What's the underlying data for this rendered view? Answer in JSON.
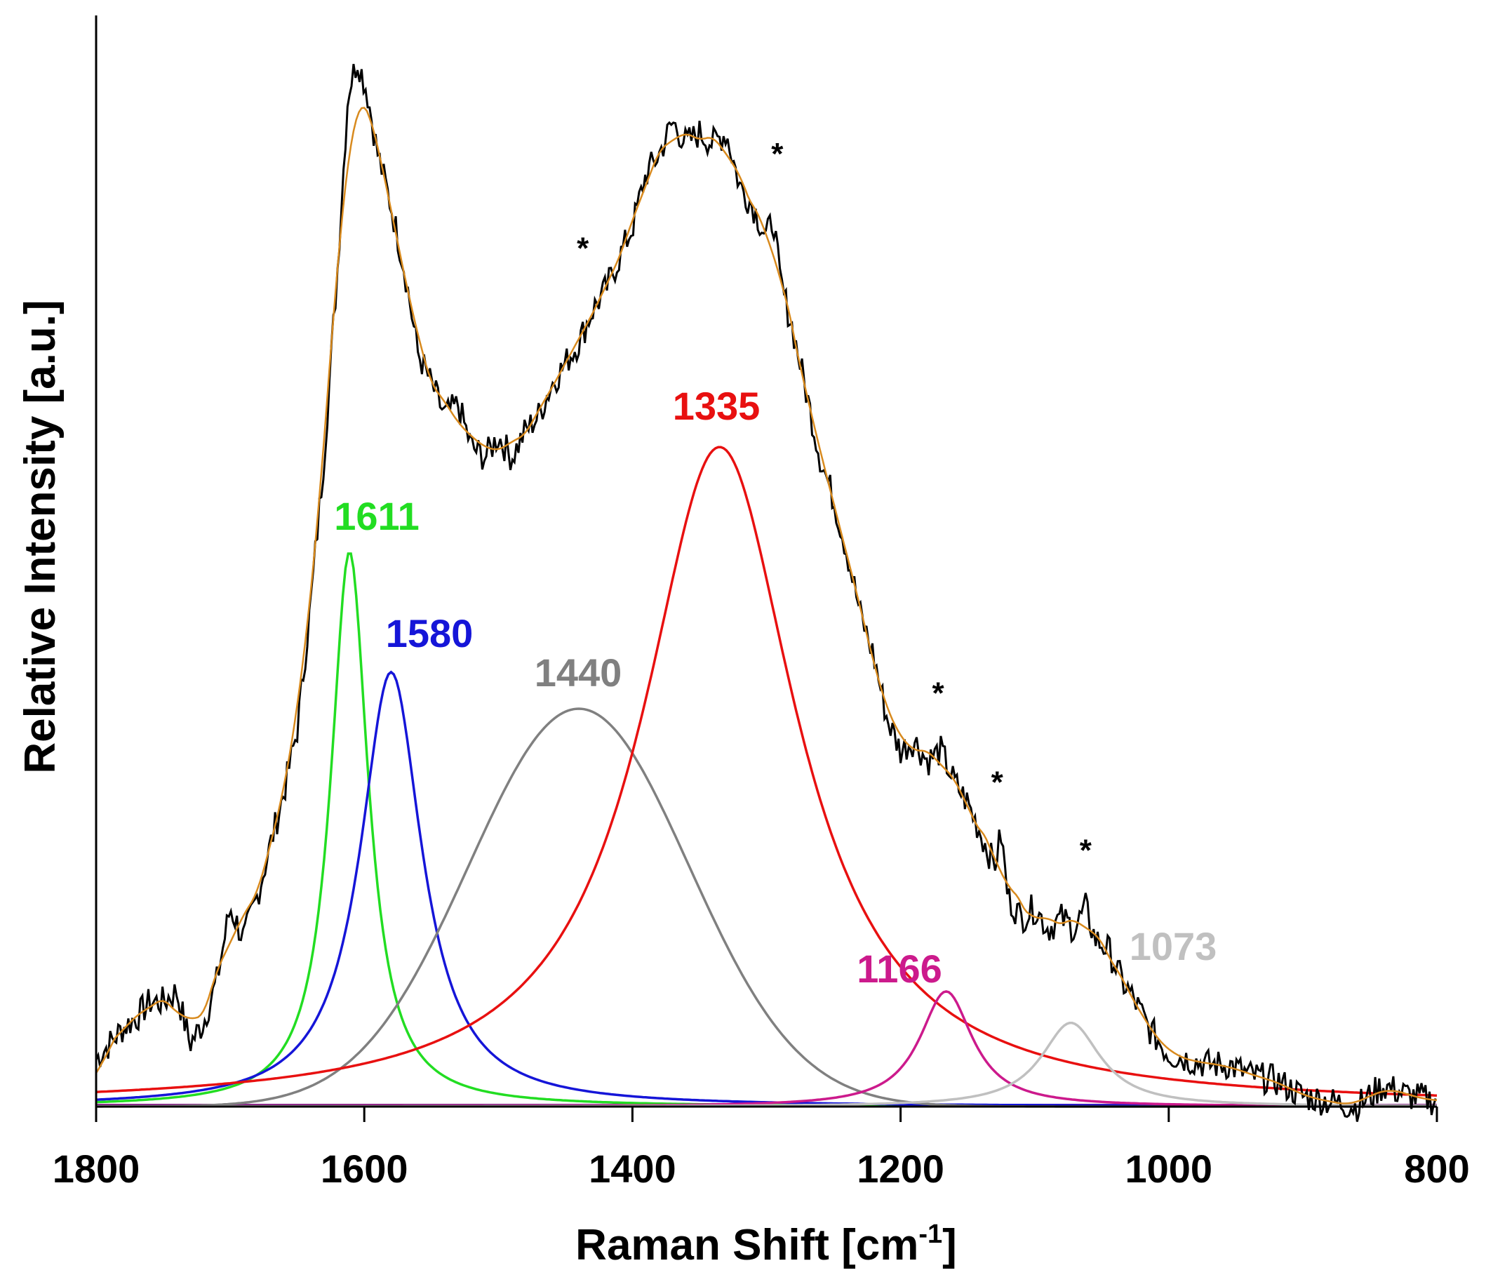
{
  "chart_data": {
    "type": "line",
    "title": "",
    "xlabel_main": "Raman Shift [cm",
    "xlabel_sup": "-1",
    "xlabel_end": "]",
    "ylabel": "Relative Intensity [a.u.]",
    "xlim": [
      1800,
      800
    ],
    "ylim": [
      0,
      1.0
    ],
    "x_reversed": true,
    "x_ticks": [
      "1800",
      "1600",
      "1400",
      "1200",
      "1000",
      "800"
    ],
    "x_tick_values": [
      1800,
      1600,
      1400,
      1200,
      1000,
      800
    ],
    "grid": false,
    "legend": "none",
    "peaks": [
      {
        "name": "band-1611",
        "label": "1611",
        "center": 1611,
        "height": 0.53,
        "hwhm": 17,
        "color": "#22dd22"
      },
      {
        "name": "band-1580",
        "label": "1580",
        "center": 1580,
        "height": 0.415,
        "hwhm": 28,
        "color": "#1515d8"
      },
      {
        "name": "band-1440",
        "label": "1440",
        "center": 1440,
        "height": 0.38,
        "sigma": 82,
        "shape": "gaussian",
        "color": "#808080"
      },
      {
        "name": "band-1335",
        "label": "1335",
        "center": 1335,
        "height": 0.63,
        "hwhm": 70,
        "color": "#e81010"
      },
      {
        "name": "band-1166",
        "label": "1166",
        "center": 1166,
        "height": 0.11,
        "hwhm": 24,
        "color": "#cc1a8c"
      },
      {
        "name": "band-1073",
        "label": "1073",
        "center": 1073,
        "height": 0.08,
        "hwhm": 27,
        "color": "#c0c0c0"
      }
    ],
    "fit_color": "#d88a1e",
    "measured_color": "#000000",
    "measured_spectrum": [
      [
        1800,
        0.045
      ],
      [
        1790,
        0.06
      ],
      [
        1780,
        0.075
      ],
      [
        1770,
        0.085
      ],
      [
        1760,
        0.1
      ],
      [
        1750,
        0.1
      ],
      [
        1740,
        0.11
      ],
      [
        1730,
        0.06
      ],
      [
        1720,
        0.08
      ],
      [
        1710,
        0.12
      ],
      [
        1700,
        0.19
      ],
      [
        1690,
        0.16
      ],
      [
        1680,
        0.2
      ],
      [
        1670,
        0.25
      ],
      [
        1660,
        0.3
      ],
      [
        1650,
        0.36
      ],
      [
        1640,
        0.48
      ],
      [
        1630,
        0.62
      ],
      [
        1620,
        0.8
      ],
      [
        1612,
        0.97
      ],
      [
        1605,
        1.0
      ],
      [
        1598,
        0.97
      ],
      [
        1590,
        0.91
      ],
      [
        1580,
        0.86
      ],
      [
        1570,
        0.8
      ],
      [
        1560,
        0.72
      ],
      [
        1550,
        0.69
      ],
      [
        1540,
        0.66
      ],
      [
        1530,
        0.67
      ],
      [
        1520,
        0.63
      ],
      [
        1510,
        0.62
      ],
      [
        1500,
        0.64
      ],
      [
        1490,
        0.62
      ],
      [
        1480,
        0.645
      ],
      [
        1470,
        0.66
      ],
      [
        1460,
        0.69
      ],
      [
        1450,
        0.71
      ],
      [
        1440,
        0.73
      ],
      [
        1430,
        0.76
      ],
      [
        1420,
        0.78
      ],
      [
        1410,
        0.81
      ],
      [
        1400,
        0.84
      ],
      [
        1390,
        0.89
      ],
      [
        1380,
        0.91
      ],
      [
        1370,
        0.94
      ],
      [
        1360,
        0.92
      ],
      [
        1350,
        0.93
      ],
      [
        1340,
        0.92
      ],
      [
        1330,
        0.93
      ],
      [
        1320,
        0.88
      ],
      [
        1310,
        0.86
      ],
      [
        1300,
        0.83
      ],
      [
        1295,
        0.85
      ],
      [
        1290,
        0.79
      ],
      [
        1280,
        0.74
      ],
      [
        1270,
        0.68
      ],
      [
        1260,
        0.62
      ],
      [
        1250,
        0.58
      ],
      [
        1240,
        0.53
      ],
      [
        1230,
        0.47
      ],
      [
        1220,
        0.43
      ],
      [
        1210,
        0.37
      ],
      [
        1200,
        0.34
      ],
      [
        1190,
        0.35
      ],
      [
        1180,
        0.33
      ],
      [
        1170,
        0.34
      ],
      [
        1160,
        0.31
      ],
      [
        1150,
        0.29
      ],
      [
        1140,
        0.26
      ],
      [
        1130,
        0.23
      ],
      [
        1125,
        0.26
      ],
      [
        1120,
        0.2
      ],
      [
        1110,
        0.18
      ],
      [
        1100,
        0.19
      ],
      [
        1090,
        0.17
      ],
      [
        1080,
        0.18
      ],
      [
        1070,
        0.17
      ],
      [
        1062,
        0.19
      ],
      [
        1055,
        0.16
      ],
      [
        1045,
        0.15
      ],
      [
        1035,
        0.12
      ],
      [
        1025,
        0.1
      ],
      [
        1015,
        0.075
      ],
      [
        1000,
        0.05
      ],
      [
        985,
        0.045
      ],
      [
        970,
        0.04
      ],
      [
        955,
        0.04
      ],
      [
        940,
        0.03
      ],
      [
        920,
        0.025
      ],
      [
        900,
        0.01
      ],
      [
        880,
        0.005
      ],
      [
        860,
        0.0
      ],
      [
        840,
        0.02
      ],
      [
        830,
        0.015
      ],
      [
        820,
        0.01
      ],
      [
        810,
        0.008
      ],
      [
        800,
        0.005
      ]
    ],
    "spike_markers": [
      {
        "text": "*",
        "x": 1437,
        "y": 0.81
      },
      {
        "text": "*",
        "x": 1292,
        "y": 0.9
      },
      {
        "text": "*",
        "x": 1172,
        "y": 0.385
      },
      {
        "text": "*",
        "x": 1128,
        "y": 0.3
      },
      {
        "text": "*",
        "x": 1062,
        "y": 0.235
      }
    ]
  }
}
